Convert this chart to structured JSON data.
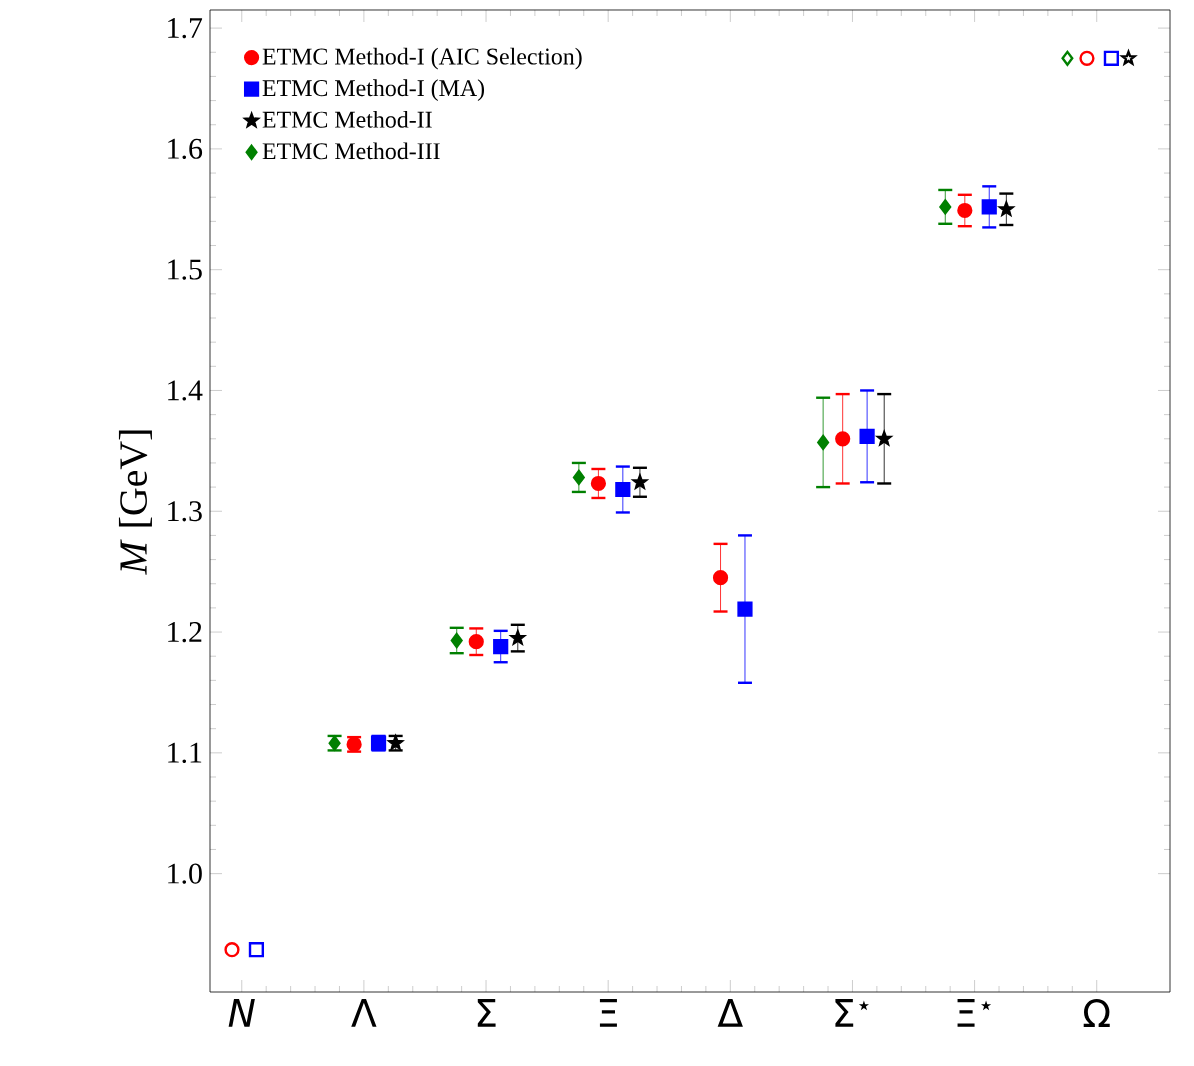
{
  "chart_data": {
    "type": "scatter",
    "categories": [
      "*N*",
      "Λ",
      "Σ",
      "Ξ",
      "Δ",
      "Σ$^{⋆}$",
      "Ξ$^{⋆}$",
      "Ω"
    ],
    "ylabel": "*M* [GeV]",
    "ylim": [
      0.902,
      1.715
    ],
    "yticks": [
      {
        "value": 1.0,
        "label": "1.0"
      },
      1.1,
      1.2,
      1.3,
      1.4,
      1.5,
      1.6,
      1.7
    ],
    "grid": false,
    "legend": "top left",
    "series": [
      {
        "name": "ETMC Method-I (AIC Selection)",
        "color": "#ff0000",
        "marker": "circle",
        "values": [
          0.937,
          1.107,
          1.192,
          1.323,
          1.245,
          1.36,
          1.549,
          1.675
        ],
        "errors": [
          null,
          0.006,
          0.011,
          0.012,
          0.028,
          0.037,
          0.013,
          null
        ]
      },
      {
        "name": "ETMC Method-I (MA)",
        "color": "#0000ff",
        "marker": "square",
        "values": [
          0.937,
          1.108,
          1.188,
          1.318,
          1.219,
          1.362,
          1.552,
          1.675
        ],
        "errors": [
          null,
          0.006,
          0.013,
          0.019,
          0.061,
          0.038,
          0.017,
          null
        ]
      },
      {
        "name": "ETMC Method-II",
        "color": "#000000",
        "marker": "star",
        "values": [
          null,
          1.108,
          1.195,
          1.324,
          null,
          1.36,
          1.55,
          1.675
        ],
        "errors": [
          null,
          0.006,
          0.011,
          0.012,
          null,
          0.037,
          0.013,
          null
        ]
      },
      {
        "name": "ETMC Method-III",
        "color": "#008000",
        "marker": "diamond",
        "values": [
          null,
          1.108,
          1.193,
          1.328,
          null,
          1.357,
          1.552,
          1.675
        ],
        "errors": [
          null,
          0.006,
          0.0105,
          0.012,
          null,
          0.037,
          0.014,
          null
        ]
      }
    ]
  }
}
